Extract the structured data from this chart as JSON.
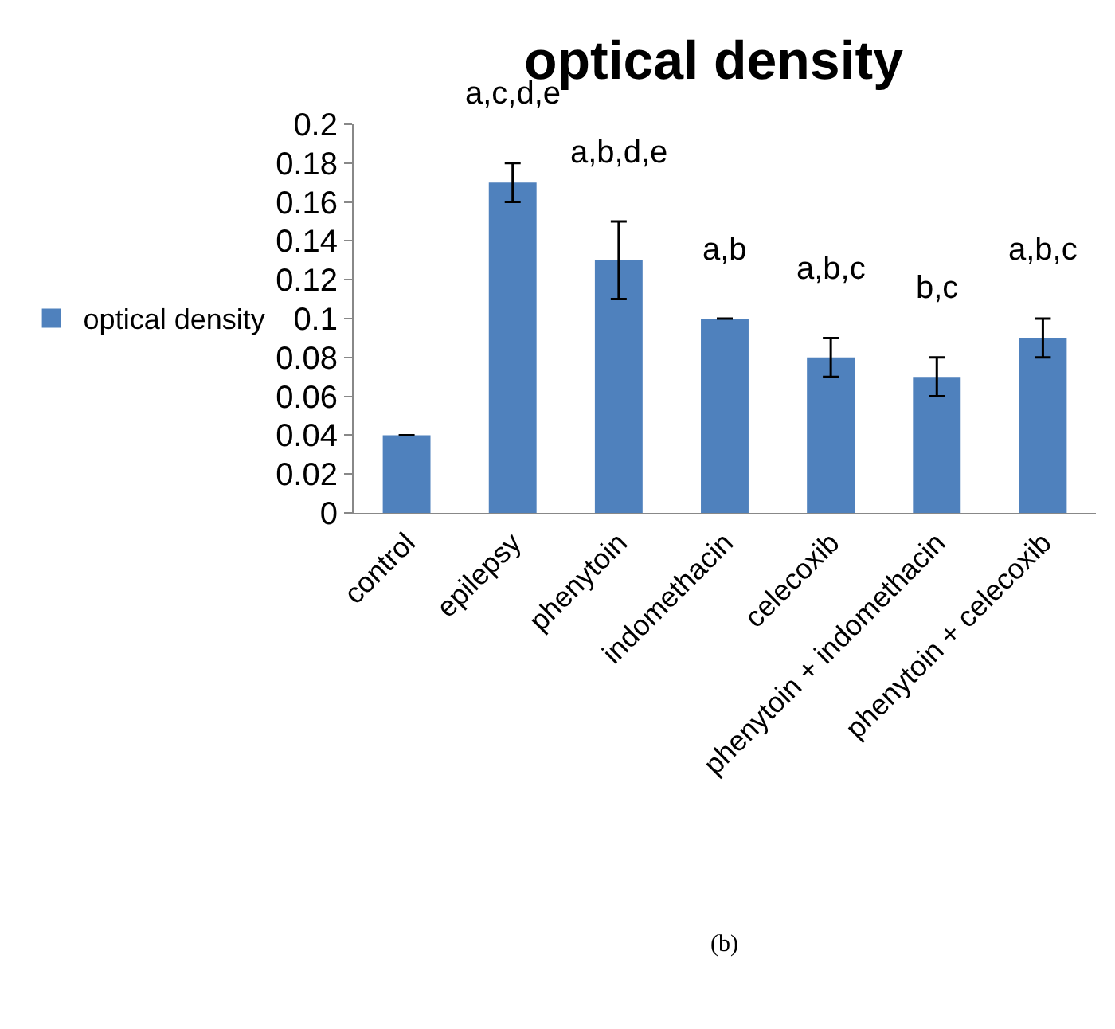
{
  "chart_data": {
    "type": "bar",
    "title": "optical density",
    "categories": [
      "control",
      "epilepsy",
      "phenytoin",
      "indomethacin",
      "celecoxib",
      "phenytoin + indomethacin",
      "phenytoin + celecoxib"
    ],
    "series": [
      {
        "name": "optical density",
        "color": "#4f81bd",
        "values": [
          0.04,
          0.17,
          0.13,
          0.1,
          0.08,
          0.07,
          0.09
        ],
        "errors": [
          0,
          0.01,
          0.02,
          0,
          0.01,
          0.01,
          0.01
        ]
      }
    ],
    "ylim": [
      0,
      0.2
    ],
    "yticks": [
      0,
      0.02,
      0.04,
      0.06,
      0.08,
      0.1,
      0.12,
      0.14,
      0.16,
      0.18,
      0.2
    ],
    "grid": false,
    "legend": "left",
    "annotations": [
      "a,c,d,e",
      "a,b,d,e",
      "a,b",
      "a,b,c",
      "b,c",
      "a,b,c",
      "(b)"
    ]
  }
}
